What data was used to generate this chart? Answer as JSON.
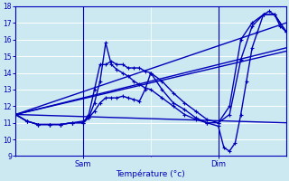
{
  "xlabel": "Température (°c)",
  "background_color": "#cce8f0",
  "grid_color": "#ffffff",
  "line_color": "#0000bb",
  "ylim": [
    9,
    18
  ],
  "xlim": [
    0,
    48
  ],
  "yticks": [
    9,
    10,
    11,
    12,
    13,
    14,
    15,
    16,
    17,
    18
  ],
  "sam_x": 12,
  "dim_x": 36,
  "series": [
    {
      "x": [
        0,
        48
      ],
      "y": [
        11.5,
        17.0
      ],
      "marker": null,
      "linewidth": 1.0
    },
    {
      "x": [
        0,
        48
      ],
      "y": [
        11.5,
        15.3
      ],
      "marker": null,
      "linewidth": 1.0
    },
    {
      "x": [
        0,
        48
      ],
      "y": [
        11.5,
        15.5
      ],
      "marker": null,
      "linewidth": 1.0
    },
    {
      "x": [
        0,
        48
      ],
      "y": [
        11.5,
        11.0
      ],
      "marker": null,
      "linewidth": 1.0
    },
    {
      "x": [
        0,
        2,
        4,
        6,
        8,
        10,
        12,
        13,
        14,
        15,
        16,
        17,
        18,
        19,
        20,
        21,
        22,
        23,
        24,
        26,
        28,
        30,
        32,
        34,
        36,
        37,
        38,
        39,
        40,
        41,
        42,
        43,
        44,
        45,
        46,
        47,
        48
      ],
      "y": [
        11.5,
        11.1,
        10.9,
        10.9,
        10.9,
        11.0,
        11.1,
        11.3,
        11.7,
        12.2,
        12.5,
        12.5,
        12.5,
        12.6,
        12.5,
        12.4,
        12.3,
        13.0,
        14.0,
        13.0,
        12.2,
        11.8,
        11.3,
        11.0,
        10.8,
        9.5,
        9.3,
        9.8,
        11.5,
        13.5,
        15.5,
        16.5,
        17.5,
        17.7,
        17.5,
        16.8,
        16.5
      ],
      "marker": "+",
      "linewidth": 1.0,
      "markersize": 3.5
    },
    {
      "x": [
        0,
        2,
        4,
        6,
        8,
        10,
        12,
        13,
        14,
        15,
        16,
        17,
        18,
        19,
        20,
        21,
        22,
        23,
        24,
        26,
        28,
        30,
        32,
        34,
        36,
        38,
        40,
        42,
        44,
        46,
        48
      ],
      "y": [
        11.5,
        11.1,
        10.9,
        10.9,
        10.9,
        11.0,
        11.0,
        11.3,
        12.2,
        13.5,
        15.8,
        14.5,
        14.2,
        14.0,
        13.8,
        13.5,
        13.3,
        13.1,
        13.0,
        12.5,
        12.0,
        11.5,
        11.2,
        11.0,
        11.0,
        12.0,
        16.0,
        17.0,
        17.5,
        17.5,
        16.5
      ],
      "marker": "+",
      "linewidth": 1.0,
      "markersize": 3.5
    },
    {
      "x": [
        0,
        2,
        4,
        6,
        8,
        10,
        12,
        13,
        14,
        15,
        16,
        17,
        18,
        19,
        20,
        21,
        22,
        23,
        24,
        26,
        28,
        30,
        32,
        34,
        36,
        38,
        40,
        42,
        44,
        46,
        48
      ],
      "y": [
        11.5,
        11.1,
        10.9,
        10.9,
        10.9,
        11.0,
        11.0,
        11.5,
        13.0,
        14.5,
        14.5,
        14.7,
        14.5,
        14.5,
        14.3,
        14.3,
        14.3,
        14.1,
        14.0,
        13.5,
        12.8,
        12.2,
        11.7,
        11.2,
        11.0,
        11.5,
        14.8,
        16.8,
        17.5,
        17.5,
        16.5
      ],
      "marker": "+",
      "linewidth": 1.0,
      "markersize": 3.5
    }
  ]
}
